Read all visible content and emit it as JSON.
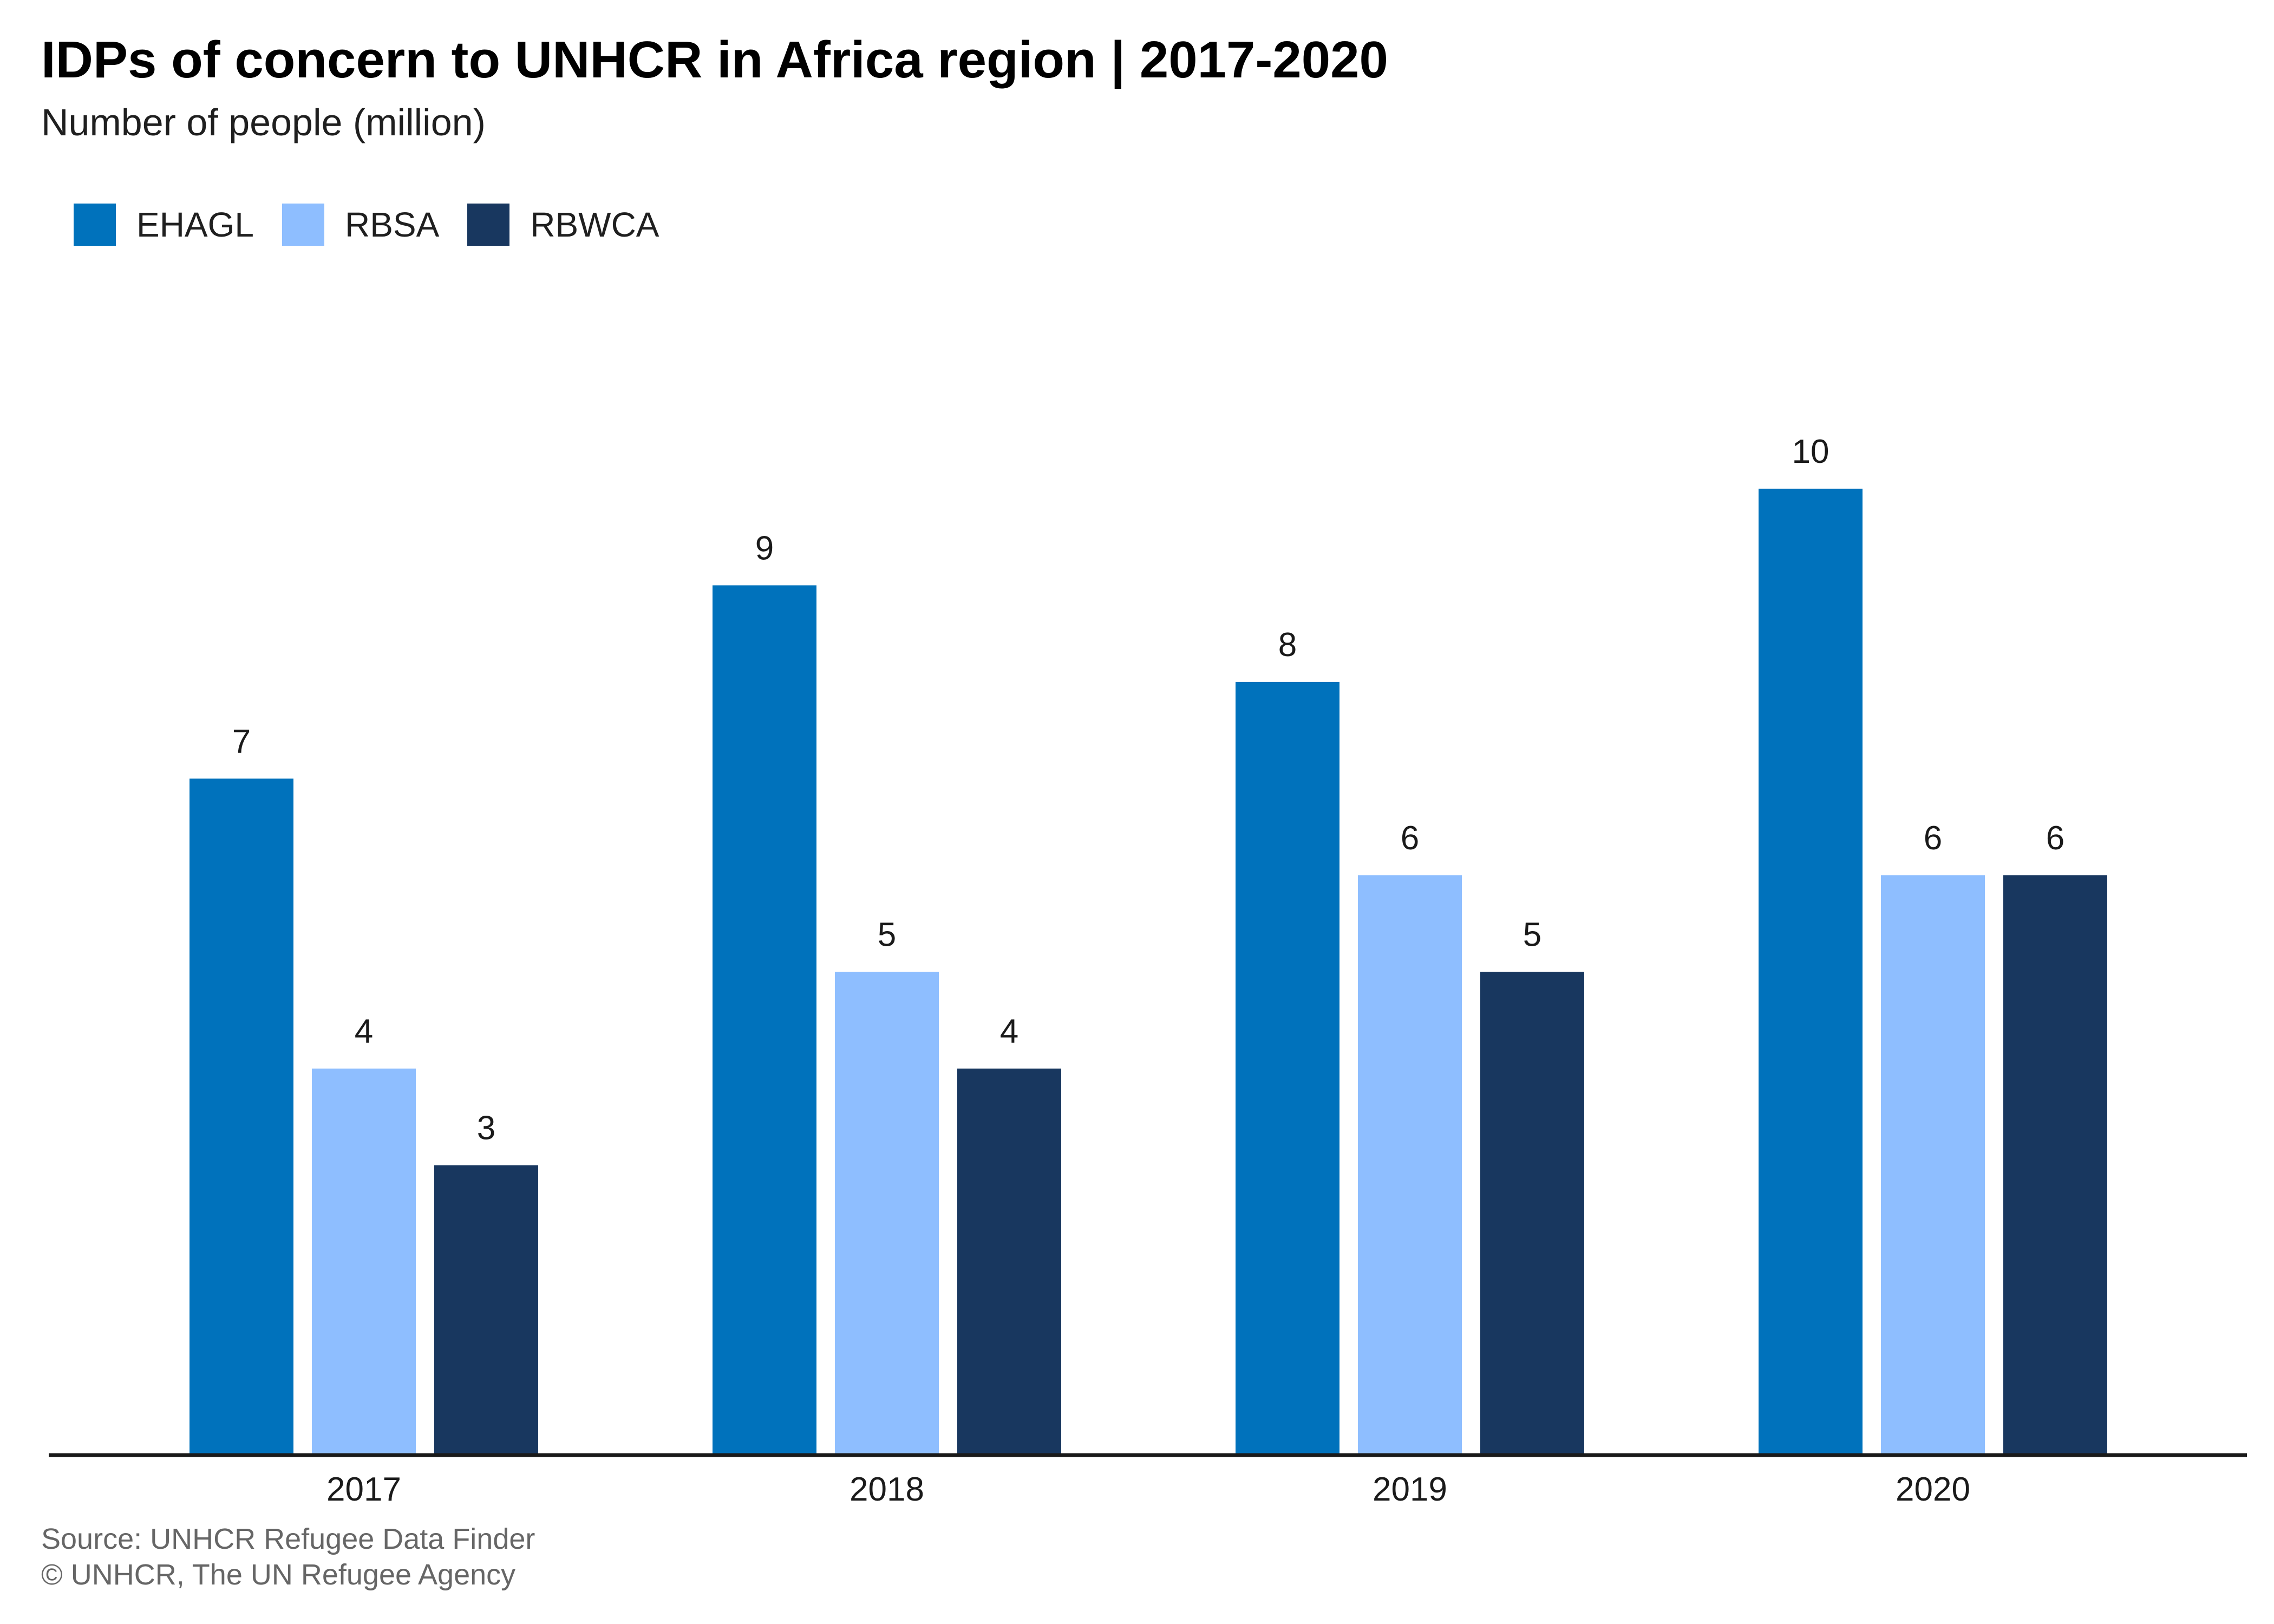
{
  "chart_data": {
    "type": "bar",
    "title": "IDPs of concern to UNHCR in Africa region | 2017-2020",
    "subtitle": "Number of people (million)",
    "categories": [
      "2017",
      "2018",
      "2019",
      "2020"
    ],
    "series": [
      {
        "name": "EHAGL",
        "color": "#0072bc",
        "values": [
          7,
          9,
          8,
          10
        ]
      },
      {
        "name": "RBSA",
        "color": "#8ebeff",
        "values": [
          4,
          5,
          6,
          6
        ]
      },
      {
        "name": "RBWCA",
        "color": "#18375f",
        "values": [
          3,
          4,
          5,
          6
        ]
      }
    ],
    "data_labels": true,
    "ylim": [
      0,
      10.8
    ],
    "grid": false,
    "legend_position": "top-left"
  },
  "footer": {
    "source": "Source: UNHCR Refugee Data Finder",
    "copyright": "© UNHCR, The UN Refugee Agency"
  },
  "colors": {
    "axis": "#1a1a1a",
    "label": "#1a1a1a",
    "footer": "#666666"
  }
}
